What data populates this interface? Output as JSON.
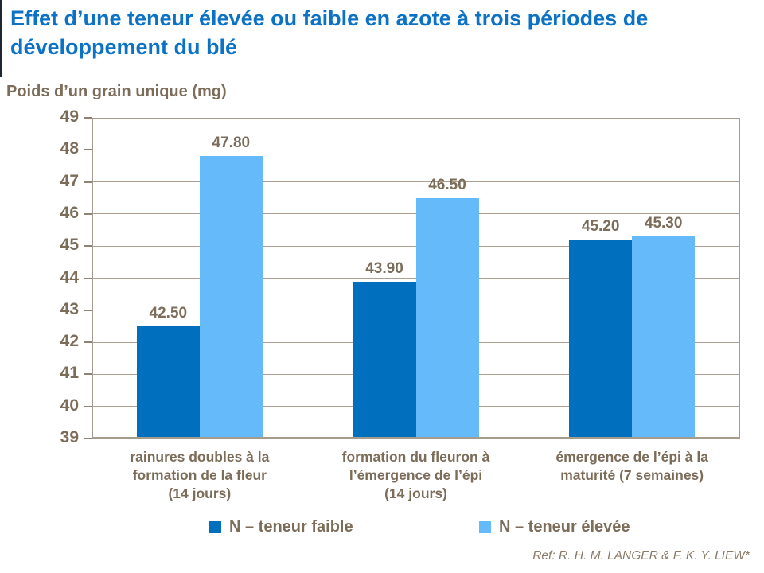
{
  "slide": {
    "title": "Effet d’une teneur élevée ou faible en azote à trois périodes de développement du blé",
    "reference": "Ref: R. H. M. LANGER & F. K. Y. LIEW*"
  },
  "colors": {
    "title_blue": "#0b72c6",
    "text_brown": "#7c6c5a",
    "grid_line": "#ab9f91",
    "plot_border": "#a79b8d",
    "series_faible": "#0070be",
    "series_elevee": "#65baf9"
  },
  "chart_data": {
    "type": "bar",
    "title": "",
    "axis_title": "Poids d’un grain unique (mg)",
    "xlabel": "",
    "ylabel": "Poids d’un grain unique (mg)",
    "ylim": [
      39,
      49
    ],
    "ytick_step": 1,
    "grid": true,
    "legend_position": "bottom",
    "categories": [
      [
        "rainures doubles à la",
        "formation de la fleur",
        "(14 jours)"
      ],
      [
        "formation du fleuron à",
        "l’émergence de l’épi",
        "(14 jours)"
      ],
      [
        "émergence de l’épi à la",
        "maturité (7 semaines)"
      ]
    ],
    "series": [
      {
        "name": "N – teneur faible",
        "color": "#0070be",
        "values": [
          42.5,
          43.9,
          45.2
        ]
      },
      {
        "name": "N – teneur élevée",
        "color": "#65baf9",
        "values": [
          47.8,
          46.5,
          45.3
        ]
      }
    ]
  }
}
